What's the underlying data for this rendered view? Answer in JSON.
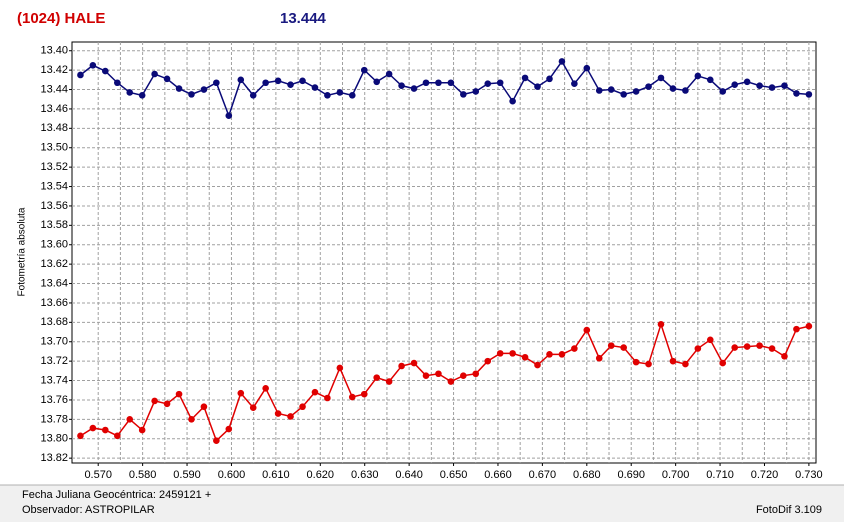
{
  "chart_data": {
    "type": "line",
    "title": "(1024) HALE",
    "subtitle": "13.444",
    "ylabel": "Fotometría absoluta",
    "xlabel": "Fecha Juliana Geocéntrica: 2459121 +",
    "observer": "Observador: ASTROPILAR",
    "software": "FotoDif 3.109",
    "title_color": "#d00000",
    "subtitle_color": "#1a1a80",
    "y_inverted": true,
    "grid": true,
    "xlim": [
      0.5641,
      0.7316
    ],
    "ylim": [
      13.391,
      13.825
    ],
    "xticks": [
      {
        "value": 0.57,
        "label": "0.570"
      },
      {
        "value": 0.58,
        "label": "0.580"
      },
      {
        "value": 0.59,
        "label": "0.590"
      },
      {
        "value": 0.6,
        "label": "0.600"
      },
      {
        "value": 0.61,
        "label": "0.610"
      },
      {
        "value": 0.62,
        "label": "0.620"
      },
      {
        "value": 0.63,
        "label": "0.630"
      },
      {
        "value": 0.64,
        "label": "0.640"
      },
      {
        "value": 0.65,
        "label": "0.650"
      },
      {
        "value": 0.66,
        "label": "0.660"
      },
      {
        "value": 0.67,
        "label": "0.670"
      },
      {
        "value": 0.68,
        "label": "0.680"
      },
      {
        "value": 0.69,
        "label": "0.690"
      },
      {
        "value": 0.7,
        "label": "0.700"
      },
      {
        "value": 0.71,
        "label": "0.710"
      },
      {
        "value": 0.72,
        "label": "0.720"
      },
      {
        "value": 0.73,
        "label": "0.730"
      }
    ],
    "xminorticks": [
      0.575,
      0.585,
      0.595,
      0.605,
      0.615,
      0.625,
      0.635,
      0.645,
      0.655,
      0.665,
      0.675,
      0.685,
      0.695,
      0.705,
      0.715,
      0.725
    ],
    "yticks": [
      {
        "value": 13.4,
        "label": "13.40"
      },
      {
        "value": 13.42,
        "label": "13.42"
      },
      {
        "value": 13.44,
        "label": "13.44"
      },
      {
        "value": 13.46,
        "label": "13.46"
      },
      {
        "value": 13.48,
        "label": "13.48"
      },
      {
        "value": 13.5,
        "label": "13.50"
      },
      {
        "value": 13.52,
        "label": "13.52"
      },
      {
        "value": 13.54,
        "label": "13.54"
      },
      {
        "value": 13.56,
        "label": "13.56"
      },
      {
        "value": 13.58,
        "label": "13.58"
      },
      {
        "value": 13.6,
        "label": "13.60"
      },
      {
        "value": 13.62,
        "label": "13.62"
      },
      {
        "value": 13.64,
        "label": "13.64"
      },
      {
        "value": 13.66,
        "label": "13.66"
      },
      {
        "value": 13.68,
        "label": "13.68"
      },
      {
        "value": 13.7,
        "label": "13.70"
      },
      {
        "value": 13.72,
        "label": "13.72"
      },
      {
        "value": 13.74,
        "label": "13.74"
      },
      {
        "value": 13.76,
        "label": "13.76"
      },
      {
        "value": 13.78,
        "label": "13.78"
      },
      {
        "value": 13.8,
        "label": "13.80"
      },
      {
        "value": 13.82,
        "label": "13.82"
      }
    ],
    "x": [
      0.566,
      0.5688,
      0.5716,
      0.5743,
      0.5771,
      0.5799,
      0.5827,
      0.5855,
      0.5882,
      0.591,
      0.5938,
      0.5966,
      0.5994,
      0.6021,
      0.6049,
      0.6077,
      0.6105,
      0.6133,
      0.616,
      0.6188,
      0.6216,
      0.6244,
      0.6272,
      0.6299,
      0.6327,
      0.6355,
      0.6383,
      0.6411,
      0.6438,
      0.6466,
      0.6494,
      0.6522,
      0.655,
      0.6577,
      0.6605,
      0.6633,
      0.6661,
      0.6689,
      0.6716,
      0.6744,
      0.6772,
      0.68,
      0.6828,
      0.6855,
      0.6883,
      0.6911,
      0.6939,
      0.6967,
      0.6994,
      0.7022,
      0.705,
      0.7078,
      0.7106,
      0.7133,
      0.7161,
      0.7189,
      0.7217,
      0.7245,
      0.7272,
      0.73
    ],
    "series": [
      {
        "color": "#0a0a78",
        "values": [
          13.425,
          13.415,
          13.421,
          13.433,
          13.443,
          13.446,
          13.424,
          13.429,
          13.439,
          13.445,
          13.44,
          13.433,
          13.467,
          13.43,
          13.446,
          13.433,
          13.431,
          13.435,
          13.431,
          13.438,
          13.446,
          13.443,
          13.446,
          13.42,
          13.432,
          13.424,
          13.436,
          13.439,
          13.433,
          13.433,
          13.433,
          13.445,
          13.442,
          13.434,
          13.433,
          13.452,
          13.428,
          13.437,
          13.429,
          13.411,
          13.434,
          13.418,
          13.441,
          13.44,
          13.445,
          13.442,
          13.437,
          13.428,
          13.439,
          13.441,
          13.426,
          13.43,
          13.442,
          13.435,
          13.432,
          13.436,
          13.438,
          13.436,
          13.444,
          13.445
        ]
      },
      {
        "color": "#e00000",
        "values": [
          13.797,
          13.789,
          13.791,
          13.797,
          13.78,
          13.791,
          13.761,
          13.764,
          13.754,
          13.78,
          13.767,
          13.802,
          13.79,
          13.753,
          13.768,
          13.748,
          13.774,
          13.777,
          13.767,
          13.752,
          13.758,
          13.727,
          13.757,
          13.754,
          13.737,
          13.741,
          13.725,
          13.722,
          13.735,
          13.733,
          13.741,
          13.735,
          13.733,
          13.72,
          13.712,
          13.712,
          13.716,
          13.724,
          13.713,
          13.713,
          13.707,
          13.688,
          13.717,
          13.704,
          13.706,
          13.721,
          13.723,
          13.682,
          13.72,
          13.723,
          13.707,
          13.698,
          13.722,
          13.706,
          13.705,
          13.704,
          13.707,
          13.715,
          13.687,
          13.684
        ]
      }
    ]
  }
}
